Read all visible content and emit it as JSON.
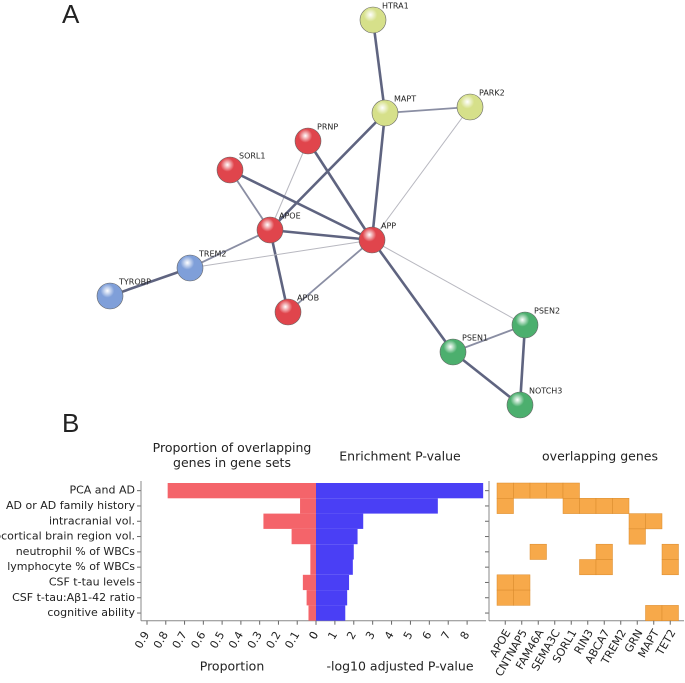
{
  "panel_a": {
    "label": "A",
    "nodes": [
      {
        "label": "HTRA1",
        "color": "#d6e08a"
      },
      {
        "label": "MAPT",
        "color": "#d6e08a"
      },
      {
        "label": "PARK2",
        "color": "#d6e08a"
      },
      {
        "label": "PRNP",
        "color": "#e0454c"
      },
      {
        "label": "SORL1",
        "color": "#e0454c"
      },
      {
        "label": "APOE",
        "color": "#e0454c"
      },
      {
        "label": "APP",
        "color": "#e0454c"
      },
      {
        "label": "TREM2",
        "color": "#7f9fd9"
      },
      {
        "label": "TYROBP",
        "color": "#7f9fd9"
      },
      {
        "label": "APOB",
        "color": "#e0454c"
      },
      {
        "label": "PSEN2",
        "color": "#4caf6e"
      },
      {
        "label": "PSEN1",
        "color": "#4caf6e"
      },
      {
        "label": "NOTCH3",
        "color": "#4caf6e"
      }
    ]
  },
  "panel_b": {
    "label": "B"
  },
  "chart_data": [
    {
      "type": "bar",
      "title": "Proportion of overlapping genes in gene sets",
      "x_label": "Proportion",
      "categories": [
        "PCA and AD",
        "AD or AD family history",
        "intracranial vol.",
        "subcortical brain region vol.",
        "neutrophil % of WBCs",
        "lymphocyte % of WBCs",
        "CSF t-tau levels",
        "CSF t-tau:Aβ1-42 ratio",
        "cognitive ability"
      ],
      "values": [
        0.79,
        0.085,
        0.28,
        0.13,
        0.03,
        0.03,
        0.07,
        0.05,
        0.04
      ],
      "color": "#f4646a",
      "xlim": [
        0.9,
        0
      ],
      "xticks": [
        0.9,
        0.8,
        0.7,
        0.6,
        0.5,
        0.4,
        0.3,
        0.2,
        0.1,
        0
      ]
    },
    {
      "type": "bar",
      "title": "Enrichment P-value",
      "x_label": "-log10 adjusted P-value",
      "values": [
        8.85,
        6.45,
        2.5,
        2.2,
        2.0,
        1.95,
        1.75,
        1.65,
        1.55
      ],
      "color": "#4a3ff5",
      "xlim": [
        0,
        9
      ],
      "xticks": [
        0,
        1,
        2,
        3,
        4,
        5,
        6,
        7,
        8
      ]
    },
    {
      "type": "matrix",
      "title": "overlapping genes",
      "columns": [
        "APOE",
        "CNTNAP5",
        "FAM46A",
        "SEMA3C",
        "SORL1",
        "RIN3",
        "ABCA7",
        "TREM2",
        "GRN",
        "MAPT",
        "TET2"
      ],
      "color": "#f7a94a",
      "values": [
        [
          1,
          1,
          1,
          1,
          1,
          0,
          0,
          0,
          0,
          0,
          0
        ],
        [
          1,
          0,
          0,
          0,
          1,
          1,
          1,
          1,
          0,
          0,
          0
        ],
        [
          0,
          0,
          0,
          0,
          0,
          0,
          0,
          0,
          1,
          1,
          0
        ],
        [
          0,
          0,
          0,
          0,
          0,
          0,
          0,
          0,
          1,
          0,
          0
        ],
        [
          0,
          0,
          1,
          0,
          0,
          0,
          1,
          0,
          0,
          0,
          1
        ],
        [
          0,
          0,
          0,
          0,
          0,
          1,
          1,
          0,
          0,
          0,
          1
        ],
        [
          1,
          1,
          0,
          0,
          0,
          0,
          0,
          0,
          0,
          0,
          0
        ],
        [
          1,
          1,
          0,
          0,
          0,
          0,
          0,
          0,
          0,
          0,
          0
        ],
        [
          0,
          0,
          0,
          0,
          0,
          0,
          0,
          0,
          0,
          1,
          1
        ]
      ]
    }
  ]
}
